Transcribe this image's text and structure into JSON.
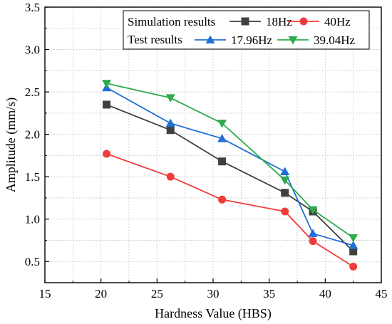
{
  "chart_data": {
    "type": "line",
    "xlabel": "Hardness Value (HBS)",
    "ylabel": "Amplitude (mm/s)",
    "xlim": [
      15,
      45
    ],
    "ylim": [
      0.25,
      3.5
    ],
    "xticks": [
      15,
      20,
      25,
      30,
      35,
      40,
      45
    ],
    "xtick_labels": [
      "15",
      "20",
      "25",
      "30",
      "35",
      "40",
      "45"
    ],
    "yticks": [
      0.5,
      1.0,
      1.5,
      2.0,
      2.5,
      3.0,
      3.5
    ],
    "ytick_labels": [
      "0.5",
      "1.0",
      "1.5",
      "2.0",
      "2.5",
      "3.0",
      "3.5"
    ],
    "grid": true,
    "legend_position": "top-right",
    "legend_groups": [
      "Simulation results",
      "Test results"
    ],
    "x": [
      20.5,
      26.2,
      30.8,
      36.4,
      38.9,
      42.5
    ],
    "series": [
      {
        "name": "18Hz",
        "group": "Simulation results",
        "color": "#404040",
        "marker": "square",
        "values": [
          2.35,
          2.05,
          1.68,
          1.31,
          1.09,
          0.62
        ]
      },
      {
        "name": "40Hz",
        "group": "Simulation results",
        "color": "#f03c3c",
        "marker": "circle",
        "values": [
          1.77,
          1.5,
          1.23,
          1.09,
          0.74,
          0.44
        ]
      },
      {
        "name": "17.96Hz",
        "group": "Test results",
        "color": "#1f6fd6",
        "marker": "triangle-up",
        "values": [
          2.55,
          2.13,
          1.95,
          1.56,
          0.83,
          0.69
        ]
      },
      {
        "name": "39.04Hz",
        "group": "Test results",
        "color": "#2eab4a",
        "marker": "triangle-down",
        "values": [
          2.6,
          2.43,
          2.13,
          1.46,
          1.11,
          0.78
        ]
      }
    ]
  }
}
